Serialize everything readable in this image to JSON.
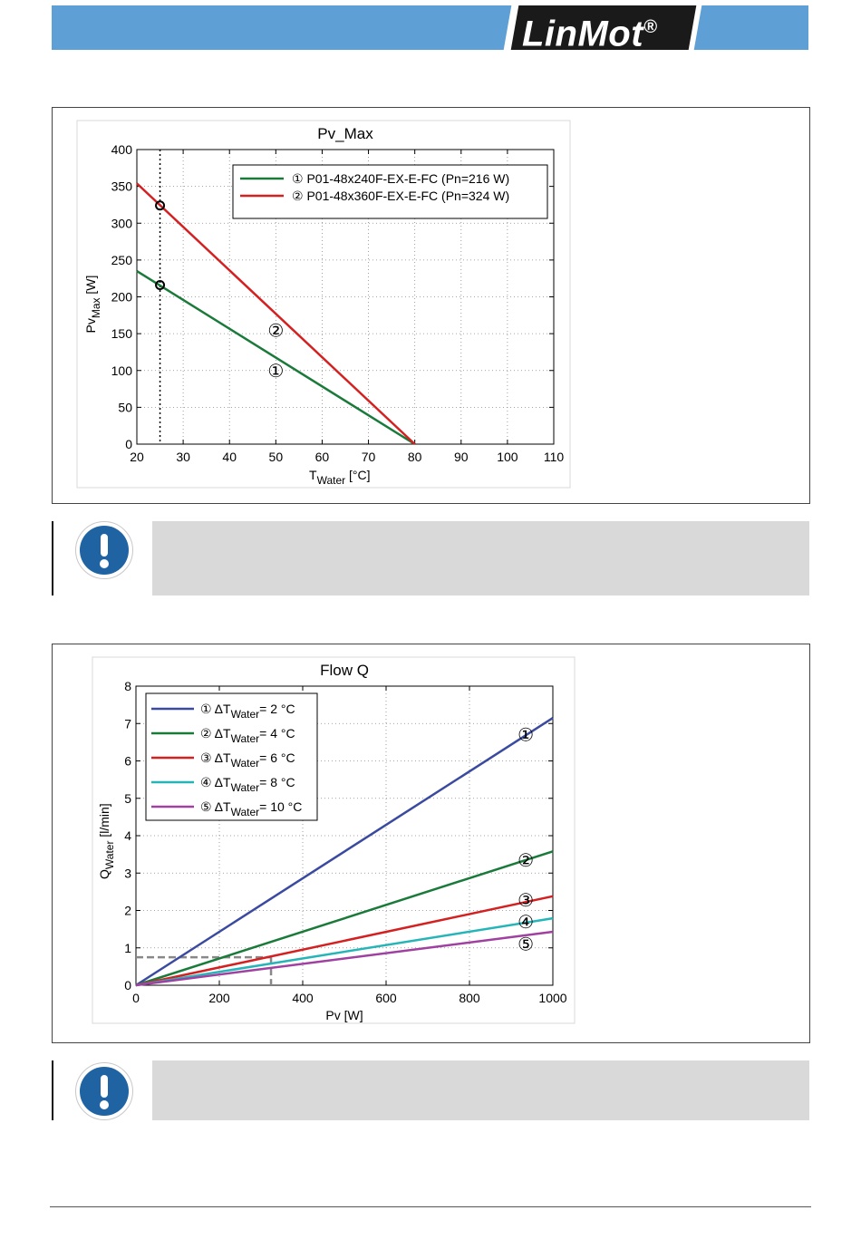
{
  "header": {
    "brand": "LinMot",
    "reg_mark": "®",
    "bar_color": "#5e9fd6"
  },
  "notes": [
    {
      "icon": "exclamation-icon",
      "text": "",
      "icon_color": "#1f63a3"
    },
    {
      "icon": "exclamation-icon",
      "text": "",
      "icon_color": "#1f63a3"
    }
  ],
  "chart_data": [
    {
      "type": "line",
      "title": "Pv_Max",
      "xlabel": "T",
      "xlabel_sub": "Water",
      "xlabel_unit": " [°C]",
      "ylabel": "Pv",
      "ylabel_sub": "Max",
      "ylabel_unit": " [W]",
      "xlim": [
        20,
        110
      ],
      "ylim": [
        0,
        400
      ],
      "xticks": [
        20,
        30,
        40,
        50,
        60,
        70,
        80,
        90,
        100,
        110
      ],
      "yticks": [
        0,
        50,
        100,
        150,
        200,
        250,
        300,
        350,
        400
      ],
      "grid": true,
      "legend_position": "top-right",
      "reference_x": 25,
      "series": [
        {
          "marker": "①",
          "name": "P01-48x240F-EX-E-FC (Pn=216 W)",
          "color": "#1a7a3a",
          "x": [
            20,
            80
          ],
          "y": [
            235,
            0
          ],
          "point": [
            25,
            216
          ],
          "label": "①",
          "label_at": [
            50,
            91
          ]
        },
        {
          "marker": "②",
          "name": "P01-48x360F-EX-E-FC (Pn=324 W)",
          "color": "#d42020",
          "x": [
            20,
            80
          ],
          "y": [
            354,
            0
          ],
          "point": [
            25,
            324
          ],
          "label": "②",
          "label_at": [
            50,
            146
          ]
        }
      ]
    },
    {
      "type": "line",
      "title": "Flow Q",
      "xlabel": "Pv [W]",
      "ylabel": "Q",
      "ylabel_sub": "Water",
      "ylabel_unit": " [l/min]",
      "xlim": [
        0,
        1000
      ],
      "ylim": [
        0,
        8
      ],
      "xticks": [
        0,
        200,
        400,
        600,
        800,
        1000
      ],
      "yticks": [
        0,
        1,
        2,
        3,
        4,
        5,
        6,
        7,
        8
      ],
      "grid": true,
      "legend_position": "top-left",
      "reference_point": [
        324,
        0.75
      ],
      "series": [
        {
          "marker": "①",
          "name_pre": "ΔT",
          "name_sub": "Water",
          "name_post": "= 2 °C",
          "color": "#3a4aa0",
          "x": [
            0,
            1000
          ],
          "y": [
            0,
            7.15
          ],
          "label": "①",
          "label_at": [
            935,
            6.7
          ]
        },
        {
          "marker": "②",
          "name_pre": "ΔT",
          "name_sub": "Water",
          "name_post": "= 4 °C",
          "color": "#1a7a3a",
          "x": [
            0,
            1000
          ],
          "y": [
            0,
            3.58
          ],
          "label": "②",
          "label_at": [
            935,
            3.35
          ]
        },
        {
          "marker": "③",
          "name_pre": "ΔT",
          "name_sub": "Water",
          "name_post": "= 6 °C",
          "color": "#d42020",
          "x": [
            0,
            1000
          ],
          "y": [
            0,
            2.38
          ],
          "label": "③",
          "label_at": [
            935,
            2.28
          ]
        },
        {
          "marker": "④",
          "name_pre": "ΔT",
          "name_sub": "Water",
          "name_post": "= 8 °C",
          "color": "#25b5b8",
          "x": [
            0,
            1000
          ],
          "y": [
            0,
            1.79
          ],
          "label": "④",
          "label_at": [
            935,
            1.7
          ]
        },
        {
          "marker": "⑤",
          "name_pre": "ΔT",
          "name_sub": "Water",
          "name_post": "= 10 °C",
          "color": "#a040a0",
          "x": [
            0,
            1000
          ],
          "y": [
            0,
            1.43
          ],
          "label": "⑤",
          "label_at": [
            935,
            1.1
          ]
        }
      ]
    }
  ]
}
